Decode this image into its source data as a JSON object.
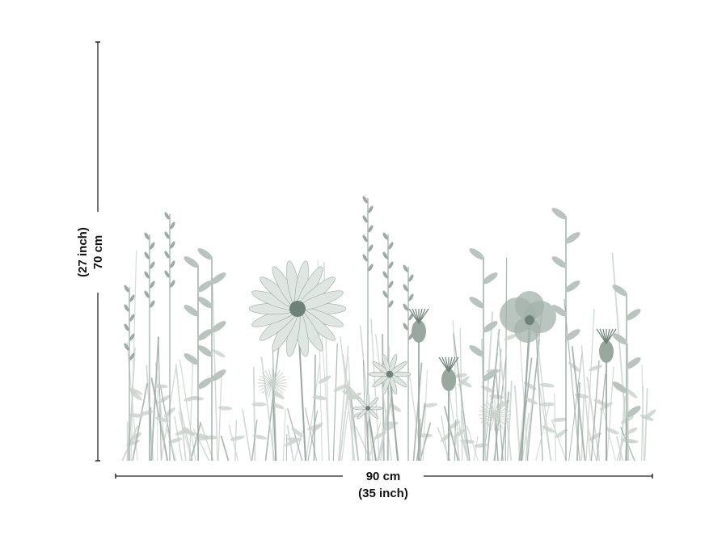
{
  "product": {
    "illustration": "watercolor-wildflower-meadow",
    "palette": {
      "dark": "#6f8279",
      "mid": "#9aaaa2",
      "light": "#c9d2cd",
      "line": "#222222"
    }
  },
  "dimensions": {
    "width_cm": "90 cm",
    "width_inch": "(35 inch)",
    "height_cm": "70 cm",
    "height_inch": "(27 inch)"
  }
}
